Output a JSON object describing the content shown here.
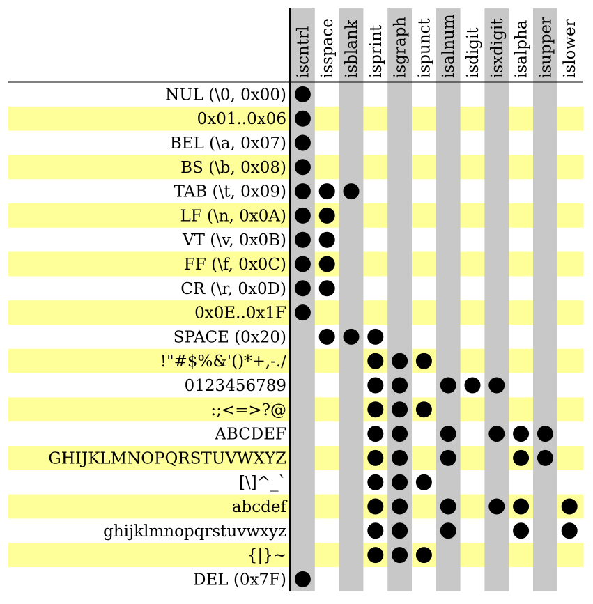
{
  "chart_data": {
    "type": "table",
    "columns": [
      "iscntrl",
      "isspace",
      "isblank",
      "isprint",
      "isgraph",
      "ispunct",
      "isalnum",
      "isdigit",
      "isxdigit",
      "isalpha",
      "isupper",
      "islower"
    ],
    "rows": [
      {
        "label": "NUL (\\0, 0x00)",
        "flags": [
          1,
          0,
          0,
          0,
          0,
          0,
          0,
          0,
          0,
          0,
          0,
          0
        ]
      },
      {
        "label": "0x01..0x06",
        "flags": [
          1,
          0,
          0,
          0,
          0,
          0,
          0,
          0,
          0,
          0,
          0,
          0
        ]
      },
      {
        "label": "BEL (\\a, 0x07)",
        "flags": [
          1,
          0,
          0,
          0,
          0,
          0,
          0,
          0,
          0,
          0,
          0,
          0
        ]
      },
      {
        "label": "BS (\\b, 0x08)",
        "flags": [
          1,
          0,
          0,
          0,
          0,
          0,
          0,
          0,
          0,
          0,
          0,
          0
        ]
      },
      {
        "label": "TAB (\\t, 0x09)",
        "flags": [
          1,
          1,
          1,
          0,
          0,
          0,
          0,
          0,
          0,
          0,
          0,
          0
        ]
      },
      {
        "label": "LF (\\n, 0x0A)",
        "flags": [
          1,
          1,
          0,
          0,
          0,
          0,
          0,
          0,
          0,
          0,
          0,
          0
        ]
      },
      {
        "label": "VT (\\v, 0x0B)",
        "flags": [
          1,
          1,
          0,
          0,
          0,
          0,
          0,
          0,
          0,
          0,
          0,
          0
        ]
      },
      {
        "label": "FF (\\f, 0x0C)",
        "flags": [
          1,
          1,
          0,
          0,
          0,
          0,
          0,
          0,
          0,
          0,
          0,
          0
        ]
      },
      {
        "label": "CR (\\r, 0x0D)",
        "flags": [
          1,
          1,
          0,
          0,
          0,
          0,
          0,
          0,
          0,
          0,
          0,
          0
        ]
      },
      {
        "label": "0x0E..0x1F",
        "flags": [
          1,
          0,
          0,
          0,
          0,
          0,
          0,
          0,
          0,
          0,
          0,
          0
        ]
      },
      {
        "label": "SPACE (0x20)",
        "flags": [
          0,
          1,
          1,
          1,
          0,
          0,
          0,
          0,
          0,
          0,
          0,
          0
        ]
      },
      {
        "label": "!\"#$%&'()*+,-./",
        "flags": [
          0,
          0,
          0,
          1,
          1,
          1,
          0,
          0,
          0,
          0,
          0,
          0
        ]
      },
      {
        "label": "0123456789",
        "flags": [
          0,
          0,
          0,
          1,
          1,
          0,
          1,
          1,
          1,
          0,
          0,
          0
        ]
      },
      {
        "label": ":;<=>?@",
        "flags": [
          0,
          0,
          0,
          1,
          1,
          1,
          0,
          0,
          0,
          0,
          0,
          0
        ]
      },
      {
        "label": "ABCDEF",
        "flags": [
          0,
          0,
          0,
          1,
          1,
          0,
          1,
          0,
          1,
          1,
          1,
          0
        ]
      },
      {
        "label": "GHIJKLMNOPQRSTUVWXYZ",
        "flags": [
          0,
          0,
          0,
          1,
          1,
          0,
          1,
          0,
          0,
          1,
          1,
          0
        ]
      },
      {
        "label": "[\\]^_`",
        "flags": [
          0,
          0,
          0,
          1,
          1,
          1,
          0,
          0,
          0,
          0,
          0,
          0
        ]
      },
      {
        "label": "abcdef",
        "flags": [
          0,
          0,
          0,
          1,
          1,
          0,
          1,
          0,
          1,
          1,
          0,
          1
        ]
      },
      {
        "label": "ghijklmnopqrstuvwxyz",
        "flags": [
          0,
          0,
          0,
          1,
          1,
          0,
          1,
          0,
          0,
          1,
          0,
          1
        ]
      },
      {
        "label": "{|}~",
        "flags": [
          0,
          0,
          0,
          1,
          1,
          1,
          0,
          0,
          0,
          0,
          0,
          0
        ]
      },
      {
        "label": "DEL (0x7F)",
        "flags": [
          1,
          0,
          0,
          0,
          0,
          0,
          0,
          0,
          0,
          0,
          0,
          0
        ]
      }
    ],
    "colors": {
      "row_stripe": "#ffff99",
      "column_stripe": "#c8c8c8",
      "dot": "#000000",
      "rule": "#000000",
      "text": "#000000"
    }
  }
}
